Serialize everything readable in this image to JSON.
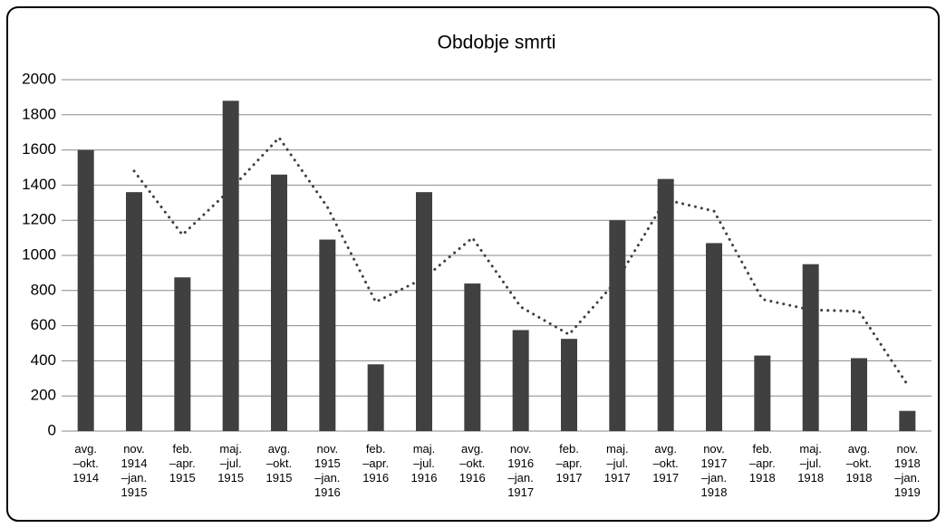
{
  "chart_data": {
    "type": "bar",
    "title": "Obdobje smrti",
    "categories": [
      "avg.\n–okt.\n1914",
      "nov.\n1914\n–jan.\n1915",
      "feb.\n–apr.\n1915",
      "maj.\n–jul.\n1915",
      "avg.\n–okt.\n1915",
      "nov.\n1915\n–jan.\n1916",
      "feb.\n–apr.\n1916",
      "maj.\n–jul.\n1916",
      "avg.\n–okt.\n1916",
      "nov.\n1916\n–jan.\n1917",
      "feb.\n–apr.\n1917",
      "maj.\n–jul.\n1917",
      "avg.\n–okt.\n1917",
      "nov.\n1917\n–jan.\n1918",
      "feb.\n–apr.\n1918",
      "maj.\n–jul.\n1918",
      "avg.\n–okt.\n1918",
      "nov.\n1918\n–jan.\n1919"
    ],
    "series": [
      {
        "kind": "bar",
        "color": "#404040",
        "values": [
          1600,
          1360,
          875,
          1880,
          1460,
          1090,
          380,
          1360,
          840,
          575,
          525,
          1200,
          1435,
          1070,
          430,
          950,
          415,
          115
        ]
      },
      {
        "kind": "line",
        "style": "dotted",
        "color": "#404040",
        "values": [
          null,
          1480,
          1117,
          1377,
          1670,
          1275,
          735,
          870,
          1100,
          707,
          550,
          862,
          1317,
          1252,
          750,
          690,
          682,
          265
        ]
      }
    ],
    "ylim": [
      0,
      2000
    ],
    "yticks": [
      0,
      200,
      400,
      600,
      800,
      1000,
      1200,
      1400,
      1600,
      1800,
      2000
    ],
    "grid": true
  }
}
